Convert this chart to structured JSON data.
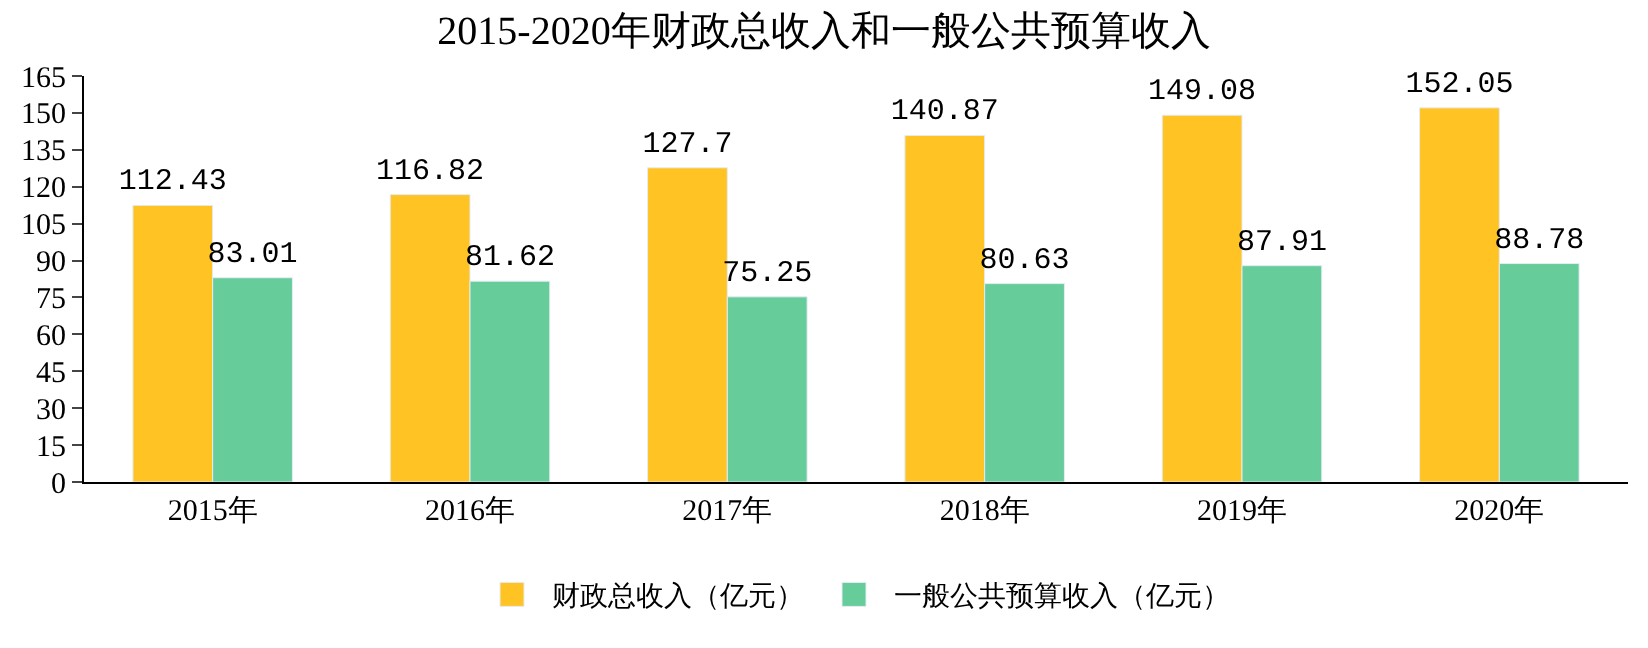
{
  "chart_data": {
    "type": "bar",
    "title": "2015-2020年财政总收入和一般公共预算收入",
    "categories": [
      "2015年",
      "2016年",
      "2017年",
      "2018年",
      "2019年",
      "2020年"
    ],
    "series": [
      {
        "name": "财政总收入（亿元）",
        "color": "#ffc423",
        "values": [
          112.43,
          116.82,
          127.7,
          140.87,
          149.08,
          152.05
        ]
      },
      {
        "name": "一般公共预算收入（亿元）",
        "color": "#66cc99",
        "values": [
          83.01,
          81.62,
          75.25,
          80.63,
          87.91,
          88.78
        ]
      }
    ],
    "ylim": [
      0,
      165
    ],
    "yticks": [
      0,
      15,
      30,
      45,
      60,
      75,
      90,
      105,
      120,
      135,
      150,
      165
    ],
    "data_labels": true,
    "legend": "bottom"
  }
}
